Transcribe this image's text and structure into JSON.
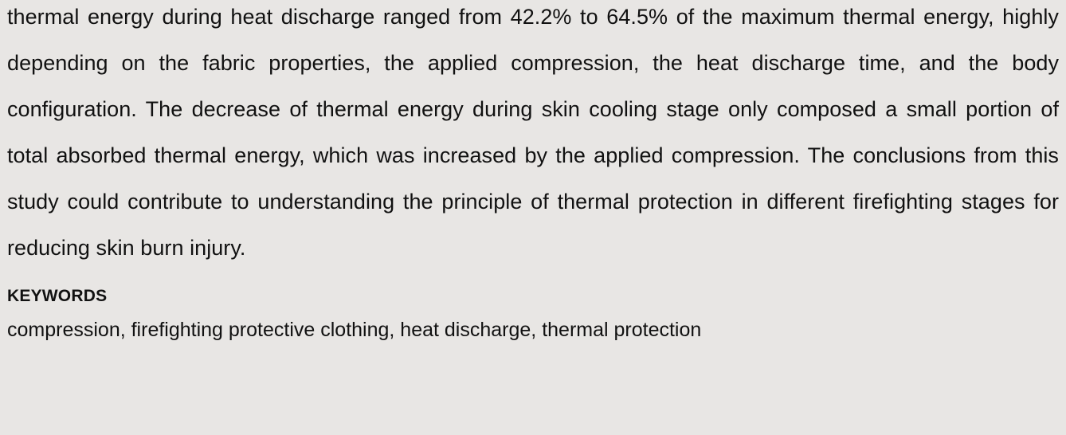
{
  "document": {
    "abstract_text": "thermal energy during heat discharge ranged from 42.2% to 64.5% of the maximum thermal energy, highly depending on the fabric properties, the applied compression, the heat discharge time, and the body configuration. The decrease of thermal energy during skin cooling stage only composed a small portion of total absorbed thermal energy, which was increased by the applied compression. The conclusions from this study could contribute to understanding the principle of thermal protection in different firefighting stages for reducing skin burn injury.",
    "keywords_heading": "KEYWORDS",
    "keywords_list": "compression, firefighting protective clothing, heat discharge, thermal protection"
  },
  "colors": {
    "background": "#e8e6e4",
    "text": "#111111"
  }
}
